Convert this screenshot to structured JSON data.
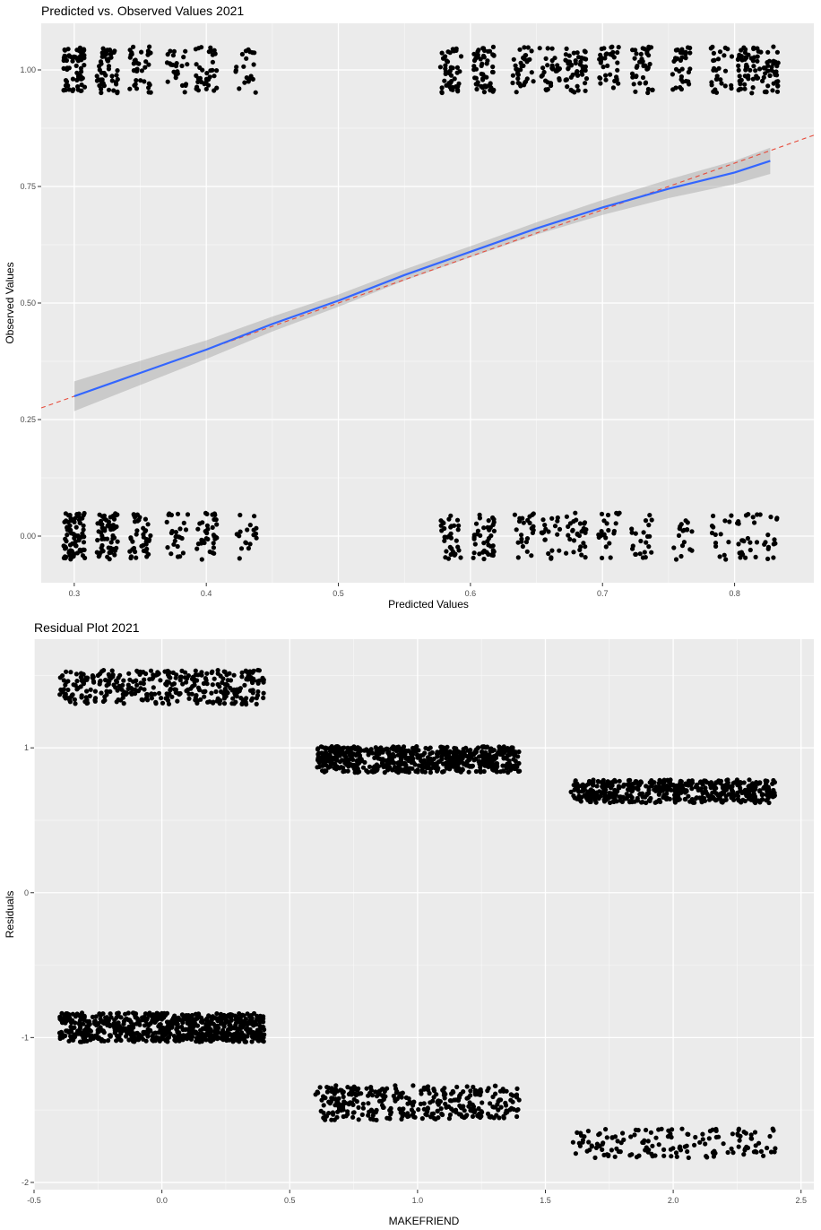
{
  "chart_data": [
    {
      "type": "scatter",
      "title": "Predicted vs. Observed Values 2021",
      "xlabel": "Predicted Values",
      "ylabel": "Observed Values",
      "xlim": [
        0.275,
        0.86
      ],
      "ylim": [
        -0.1,
        1.1
      ],
      "x_ticks": [
        0.3,
        0.4,
        0.5,
        0.6,
        0.7,
        0.8
      ],
      "x_tick_labels": [
        "0.3",
        "0.4",
        "0.5",
        "0.6",
        "0.7",
        "0.8"
      ],
      "y_ticks": [
        0.0,
        0.25,
        0.5,
        0.75,
        1.0
      ],
      "y_tick_labels": [
        "0.00",
        "0.25",
        "0.50",
        "0.75",
        "1.00"
      ],
      "grid": true,
      "jitter_y": 0.05,
      "point_clusters": [
        {
          "x": 0.3,
          "y": 1,
          "n": 70
        },
        {
          "x": 0.325,
          "y": 1,
          "n": 55
        },
        {
          "x": 0.35,
          "y": 1,
          "n": 40
        },
        {
          "x": 0.378,
          "y": 1,
          "n": 25
        },
        {
          "x": 0.4,
          "y": 1,
          "n": 35
        },
        {
          "x": 0.43,
          "y": 1,
          "n": 20
        },
        {
          "x": 0.585,
          "y": 1,
          "n": 45
        },
        {
          "x": 0.61,
          "y": 1,
          "n": 55
        },
        {
          "x": 0.64,
          "y": 1,
          "n": 35
        },
        {
          "x": 0.66,
          "y": 1,
          "n": 30
        },
        {
          "x": 0.68,
          "y": 1,
          "n": 50
        },
        {
          "x": 0.705,
          "y": 1,
          "n": 35
        },
        {
          "x": 0.73,
          "y": 1,
          "n": 40
        },
        {
          "x": 0.76,
          "y": 1,
          "n": 35
        },
        {
          "x": 0.79,
          "y": 1,
          "n": 30
        },
        {
          "x": 0.81,
          "y": 1,
          "n": 50
        },
        {
          "x": 0.825,
          "y": 1,
          "n": 40
        },
        {
          "x": 0.3,
          "y": 0,
          "n": 80
        },
        {
          "x": 0.325,
          "y": 0,
          "n": 60
        },
        {
          "x": 0.35,
          "y": 0,
          "n": 40
        },
        {
          "x": 0.378,
          "y": 0,
          "n": 25
        },
        {
          "x": 0.4,
          "y": 0,
          "n": 35
        },
        {
          "x": 0.43,
          "y": 0,
          "n": 18
        },
        {
          "x": 0.585,
          "y": 0,
          "n": 35
        },
        {
          "x": 0.61,
          "y": 0,
          "n": 40
        },
        {
          "x": 0.64,
          "y": 0,
          "n": 25
        },
        {
          "x": 0.66,
          "y": 0,
          "n": 20
        },
        {
          "x": 0.68,
          "y": 0,
          "n": 30
        },
        {
          "x": 0.705,
          "y": 0,
          "n": 22
        },
        {
          "x": 0.73,
          "y": 0,
          "n": 22
        },
        {
          "x": 0.76,
          "y": 0,
          "n": 18
        },
        {
          "x": 0.79,
          "y": 0,
          "n": 15
        },
        {
          "x": 0.81,
          "y": 0,
          "n": 22
        },
        {
          "x": 0.825,
          "y": 0,
          "n": 14
        }
      ],
      "smooth_line": {
        "color": "#3366ff",
        "x": [
          0.3,
          0.35,
          0.4,
          0.45,
          0.5,
          0.55,
          0.6,
          0.65,
          0.7,
          0.75,
          0.8,
          0.827
        ],
        "y": [
          0.3,
          0.35,
          0.4,
          0.455,
          0.505,
          0.56,
          0.61,
          0.66,
          0.705,
          0.745,
          0.78,
          0.805
        ],
        "band_halfwidth": [
          0.032,
          0.026,
          0.02,
          0.016,
          0.013,
          0.012,
          0.012,
          0.013,
          0.016,
          0.02,
          0.025,
          0.028
        ]
      },
      "reference_line": {
        "slope": 1,
        "intercept": 0,
        "color": "#e74c3c",
        "style": "dashed"
      }
    },
    {
      "type": "scatter",
      "title": "Residual Plot 2021",
      "xlabel": "MAKEFRIEND",
      "ylabel": "Residuals",
      "xlim": [
        -0.5,
        2.55
      ],
      "ylim": [
        -2.05,
        1.75
      ],
      "x_ticks": [
        -0.5,
        0.0,
        0.5,
        1.0,
        1.5,
        2.0,
        2.5
      ],
      "x_tick_labels": [
        "-0.5",
        "0.0",
        "0.5",
        "1.0",
        "1.5",
        "2.0",
        "2.5"
      ],
      "y_ticks": [
        -2,
        -1,
        0,
        1
      ],
      "y_tick_labels": [
        "-2",
        "-1",
        "0",
        "1"
      ],
      "grid": true,
      "jitter_x": 0.4,
      "bands": [
        {
          "x": 0,
          "y_center": 1.42,
          "y_spread": 0.12,
          "n": 350
        },
        {
          "x": 0,
          "y_center": -0.93,
          "y_spread": 0.1,
          "n": 700
        },
        {
          "x": 1,
          "y_center": 0.92,
          "y_spread": 0.09,
          "n": 650
        },
        {
          "x": 1,
          "y_center": -1.45,
          "y_spread": 0.12,
          "n": 350
        },
        {
          "x": 2,
          "y_center": 0.7,
          "y_spread": 0.08,
          "n": 500
        },
        {
          "x": 2,
          "y_center": -1.73,
          "y_spread": 0.1,
          "n": 150
        }
      ]
    }
  ]
}
